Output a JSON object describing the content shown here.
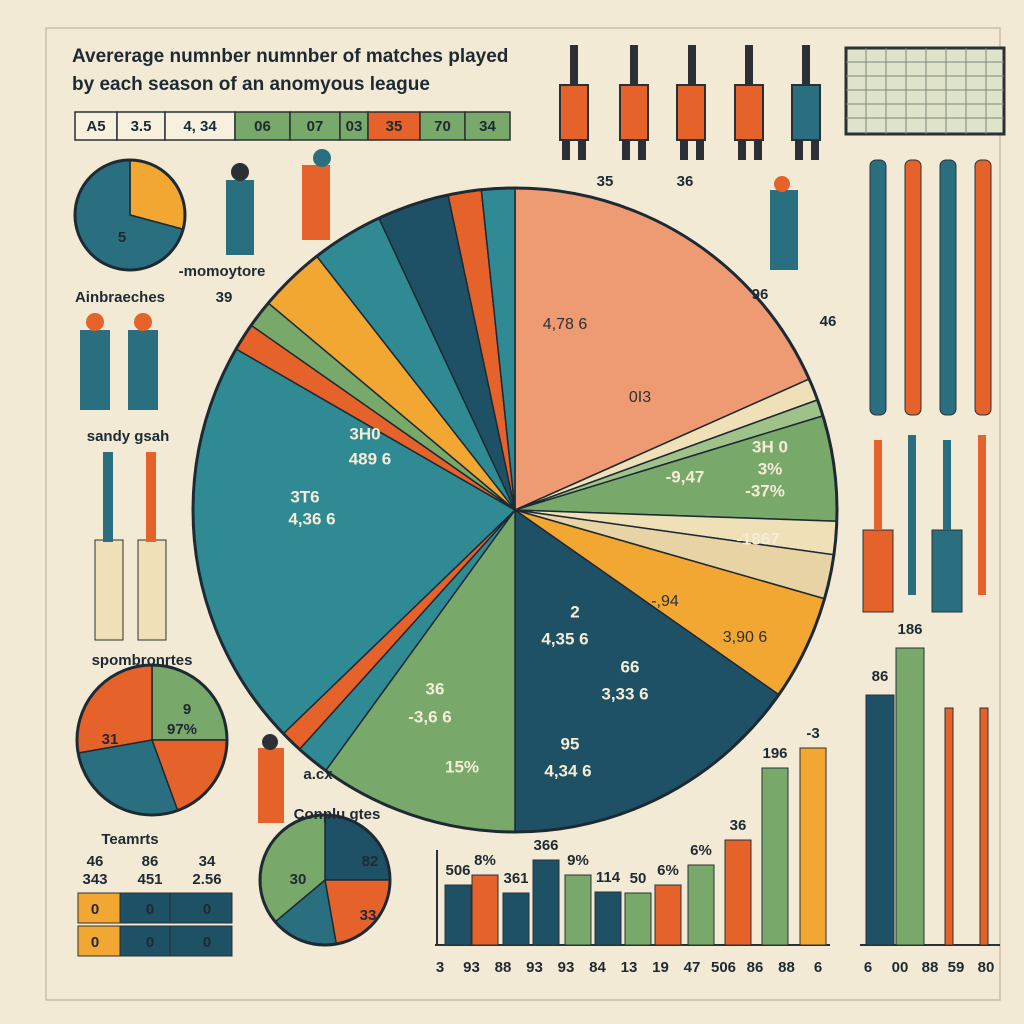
{
  "title": [
    "Avererage numnber numnber of matches played",
    "by each season of an anomyous league"
  ],
  "legend": [
    "A5",
    "3.5",
    "4, 34",
    "06",
    "07",
    "03",
    "35",
    "70",
    "34"
  ],
  "main_pie": {
    "slices": [
      {
        "color": "#ee9a72",
        "value": 66
      },
      {
        "color": "#efe0b8",
        "value": 4
      },
      {
        "color": "#9fc18a",
        "value": 3
      },
      {
        "color": "#78a86a",
        "value": 19
      },
      {
        "color": "#efe0b8",
        "value": 6
      },
      {
        "color": "#e8d3a4",
        "value": 8
      },
      {
        "color": "#f2a733",
        "value": 19
      },
      {
        "color": "#1f5166",
        "value": 55
      },
      {
        "color": "#78a86a",
        "value": 36
      },
      {
        "color": "#2f8a94",
        "value": 6
      },
      {
        "color": "#e5622a",
        "value": 4
      },
      {
        "color": "#2f8a94",
        "value": 74
      },
      {
        "color": "#e5622a",
        "value": 5
      },
      {
        "color": "#78a86a",
        "value": 5
      },
      {
        "color": "#f2a733",
        "value": 12
      },
      {
        "color": "#2f8a94",
        "value": 13
      },
      {
        "color": "#1f5166",
        "value": 13
      },
      {
        "color": "#e5622a",
        "value": 6
      },
      {
        "color": "#2f8a94",
        "value": 6
      }
    ],
    "labels": [
      "4,78 6",
      "0I3",
      "3H0",
      "489 6",
      "3T6",
      "4,36 6",
      "-9,47",
      "3H 0",
      "3%",
      "-37%",
      "-1867",
      "-,94",
      "3,90 6",
      "2",
      "4,35 6",
      "66",
      "3,33 6",
      "36",
      "-3,6 6",
      "15%",
      "95",
      "4,34 6"
    ]
  },
  "pie_small_1": {
    "slices": [
      {
        "color": "#f2a733",
        "value": 105
      },
      {
        "color": "#2a6f80",
        "value": 255
      }
    ],
    "labels": [
      "5"
    ]
  },
  "pie_small_2": {
    "slices": [
      {
        "color": "#78a86a",
        "value": 90
      },
      {
        "color": "#e5622a",
        "value": 70
      },
      {
        "color": "#2a6f80",
        "value": 100
      },
      {
        "color": "#e5622a",
        "value": 100
      }
    ],
    "labels": [
      "31",
      "9",
      "97%"
    ]
  },
  "pie_small_3": {
    "slices": [
      {
        "color": "#1f5166",
        "value": 90
      },
      {
        "color": "#e5622a",
        "value": 80
      },
      {
        "color": "#2a6f80",
        "value": 60
      },
      {
        "color": "#78a86a",
        "value": 130
      }
    ],
    "labels": [
      "82",
      "33",
      "30"
    ]
  },
  "side_labels": [
    "-momoytore",
    "39",
    "Ainbraeches",
    "sandy gsah",
    "spombronrtes",
    "Conplu gtes",
    "a.cx",
    "35",
    "36",
    "96",
    "46"
  ],
  "table": {
    "title": "Teamrts",
    "rows": [
      [
        "46",
        "86",
        "34"
      ],
      [
        "343",
        "451",
        "2.56"
      ],
      [
        "0",
        "0",
        "0"
      ],
      [
        "0",
        "0",
        "0"
      ]
    ]
  },
  "bars_1": {
    "values": [
      60,
      70,
      52,
      85,
      70,
      53,
      52,
      60,
      80,
      105,
      177,
      197
    ],
    "colors": [
      "#1f5166",
      "#e5622a",
      "#1f5166",
      "#1f5166",
      "#78a86a",
      "#1f5166",
      "#78a86a",
      "#e5622a",
      "#78a86a",
      "#e5622a",
      "#78a86a",
      "#f2a733"
    ],
    "top_labels": [
      "506",
      "8%",
      "361",
      "366",
      "9%",
      "114",
      "50",
      "6%",
      "6%",
      "36",
      "196",
      "-3"
    ],
    "bottom_labels": [
      "3",
      "93",
      "88",
      "93",
      "93",
      "84",
      "13",
      "19",
      "47",
      "506",
      "86",
      "88",
      "6"
    ]
  },
  "bars_2": {
    "values": [
      250,
      297,
      237,
      237
    ],
    "colors": [
      "#1f5166",
      "#78a86a",
      "#e5622a",
      "#e5622a"
    ],
    "top_labels": [
      "86",
      "186"
    ],
    "bottom_labels": [
      "6",
      "00",
      "88",
      "59",
      "80"
    ]
  }
}
